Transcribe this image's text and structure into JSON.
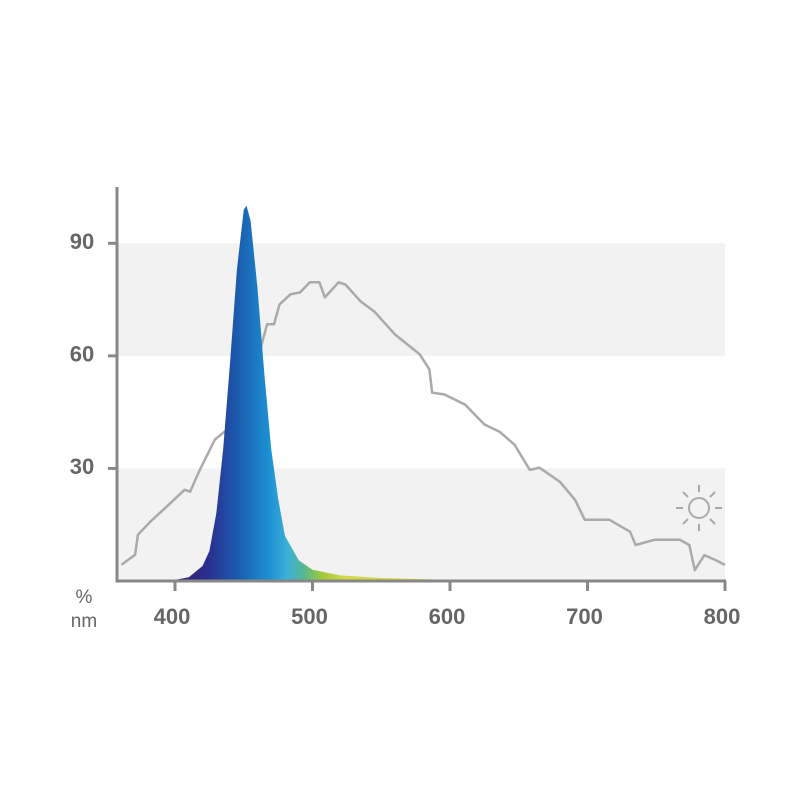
{
  "chart_data": {
    "type": "line",
    "x_label": "nm",
    "y_label": "%",
    "xlim": [
      360,
      800
    ],
    "ylim": [
      0,
      105
    ],
    "xticks": [
      400,
      500,
      600,
      700,
      800
    ],
    "yticks": [
      30,
      60,
      90
    ],
    "bands": true,
    "series": [
      {
        "color": "#aaaaaa",
        "x": [
          361,
          371,
          373,
          382,
          393,
          407,
          411,
          418,
          429,
          436,
          444,
          453,
          463,
          467,
          472,
          476,
          484,
          491,
          498,
          505,
          509,
          513,
          519,
          524,
          535,
          545,
          560,
          578,
          585,
          587,
          596,
          611,
          625,
          636,
          647,
          658,
          665,
          680,
          691,
          698,
          716,
          731,
          735,
          749,
          767,
          774,
          778,
          785,
          793,
          800
        ],
        "values": [
          4.3,
          7,
          12.3,
          15.8,
          19.5,
          24.3,
          23.8,
          29.6,
          37.7,
          39.8,
          40.9,
          47,
          63,
          68.4,
          68.4,
          73.7,
          76.4,
          76.9,
          79.6,
          79.6,
          75.6,
          77.2,
          79.6,
          79,
          74.5,
          71.8,
          65.7,
          60.4,
          56.4,
          50.2,
          49.7,
          47,
          41.7,
          39.8,
          36.3,
          29.6,
          30.2,
          26.4,
          21.6,
          16.3,
          16.3,
          13.1,
          9.6,
          11,
          11,
          9.6,
          2.9,
          6.9,
          5.6,
          4.3
        ]
      },
      {
        "area": true,
        "x": [
          360,
          400,
          410,
          420,
          425,
          430,
          435,
          440,
          445,
          450,
          452,
          455,
          460,
          465,
          470,
          475,
          480,
          490,
          500,
          520,
          550,
          600,
          660
        ],
        "values": [
          0,
          0.3,
          1,
          4,
          8,
          18,
          35,
          58,
          83,
          99,
          100,
          96,
          78,
          55,
          35,
          22,
          12,
          5.5,
          3,
          1.5,
          0.8,
          0.3,
          0
        ]
      }
    ]
  }
}
